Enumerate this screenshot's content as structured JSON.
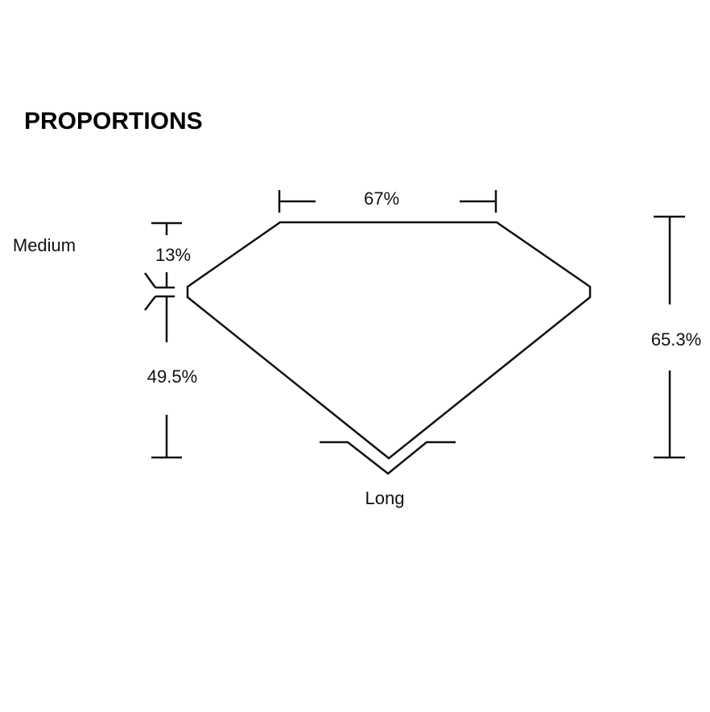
{
  "title": "PROPORTIONS",
  "labels": {
    "table": "67%",
    "crown": "13%",
    "pavilion": "49.5%",
    "total_depth": "65.3%",
    "girdle": "Medium",
    "culet": "Long"
  },
  "colors": {
    "line": "#111111",
    "background": "#ffffff"
  }
}
